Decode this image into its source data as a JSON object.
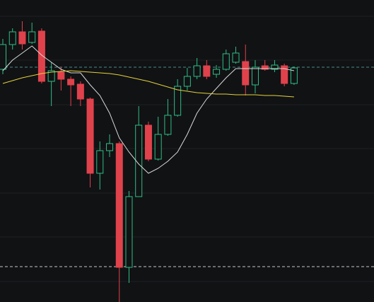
{
  "chart_data": {
    "type": "candlestick",
    "ylim": [
      0,
      427
    ],
    "yticks": [
      29,
      92,
      154,
      217,
      279,
      342,
      404
    ],
    "grid": true,
    "up_color": "#2ebd85",
    "down_color": "#e0424c",
    "open": [
      329,
      364,
      382,
      367,
      383,
      312,
      325,
      315,
      308,
      287,
      182,
      214,
      224,
      49,
      149,
      250,
      202,
      237,
      264,
      305,
      319,
      334,
      322,
      329,
      339,
      340,
      307,
      334,
      329,
      334,
      309
    ],
    "high": [
      372,
      387,
      397,
      395,
      387,
      339,
      332,
      319,
      312,
      289,
      227,
      237,
      227,
      157,
      277,
      255,
      262,
      287,
      315,
      331,
      345,
      342,
      335,
      357,
      361,
      364,
      342,
      342,
      342,
      337,
      333
    ],
    "low": [
      322,
      357,
      357,
      365,
      309,
      277,
      299,
      277,
      277,
      162,
      159,
      205,
      0,
      27,
      149,
      199,
      200,
      235,
      262,
      299,
      315,
      315,
      317,
      327,
      337,
      292,
      295,
      327,
      325,
      305,
      307
    ],
    "close": [
      364,
      382,
      365,
      382,
      312,
      327,
      315,
      307,
      287,
      182,
      214,
      224,
      49,
      149,
      250,
      202,
      237,
      264,
      305,
      319,
      334,
      319,
      329,
      351,
      352,
      307,
      332,
      329,
      335,
      309,
      331
    ],
    "series": [
      {
        "color": "#d9d9d9",
        "values": [
          327,
          342,
          352,
          362,
          349,
          339,
          329,
          324,
          324,
          307,
          292,
          267,
          232,
          212,
          195,
          182,
          189,
          199,
          212,
          237,
          267,
          287,
          302,
          317,
          330,
          330,
          330,
          330,
          330,
          330,
          327
        ]
      },
      {
        "color": "#e3d23a",
        "values": [
          309,
          313,
          317,
          320,
          323,
          325,
          326,
          327,
          326,
          325,
          324,
          323,
          321,
          318,
          315,
          312,
          308,
          304,
          300,
          298,
          296,
          295,
          294,
          294,
          293,
          293,
          293,
          292,
          292,
          291,
          290
        ]
      }
    ],
    "hlines": [
      {
        "value": 332,
        "color": "#4a8c8c"
      },
      {
        "value": 50,
        "color": "#c8c8c8"
      }
    ]
  }
}
